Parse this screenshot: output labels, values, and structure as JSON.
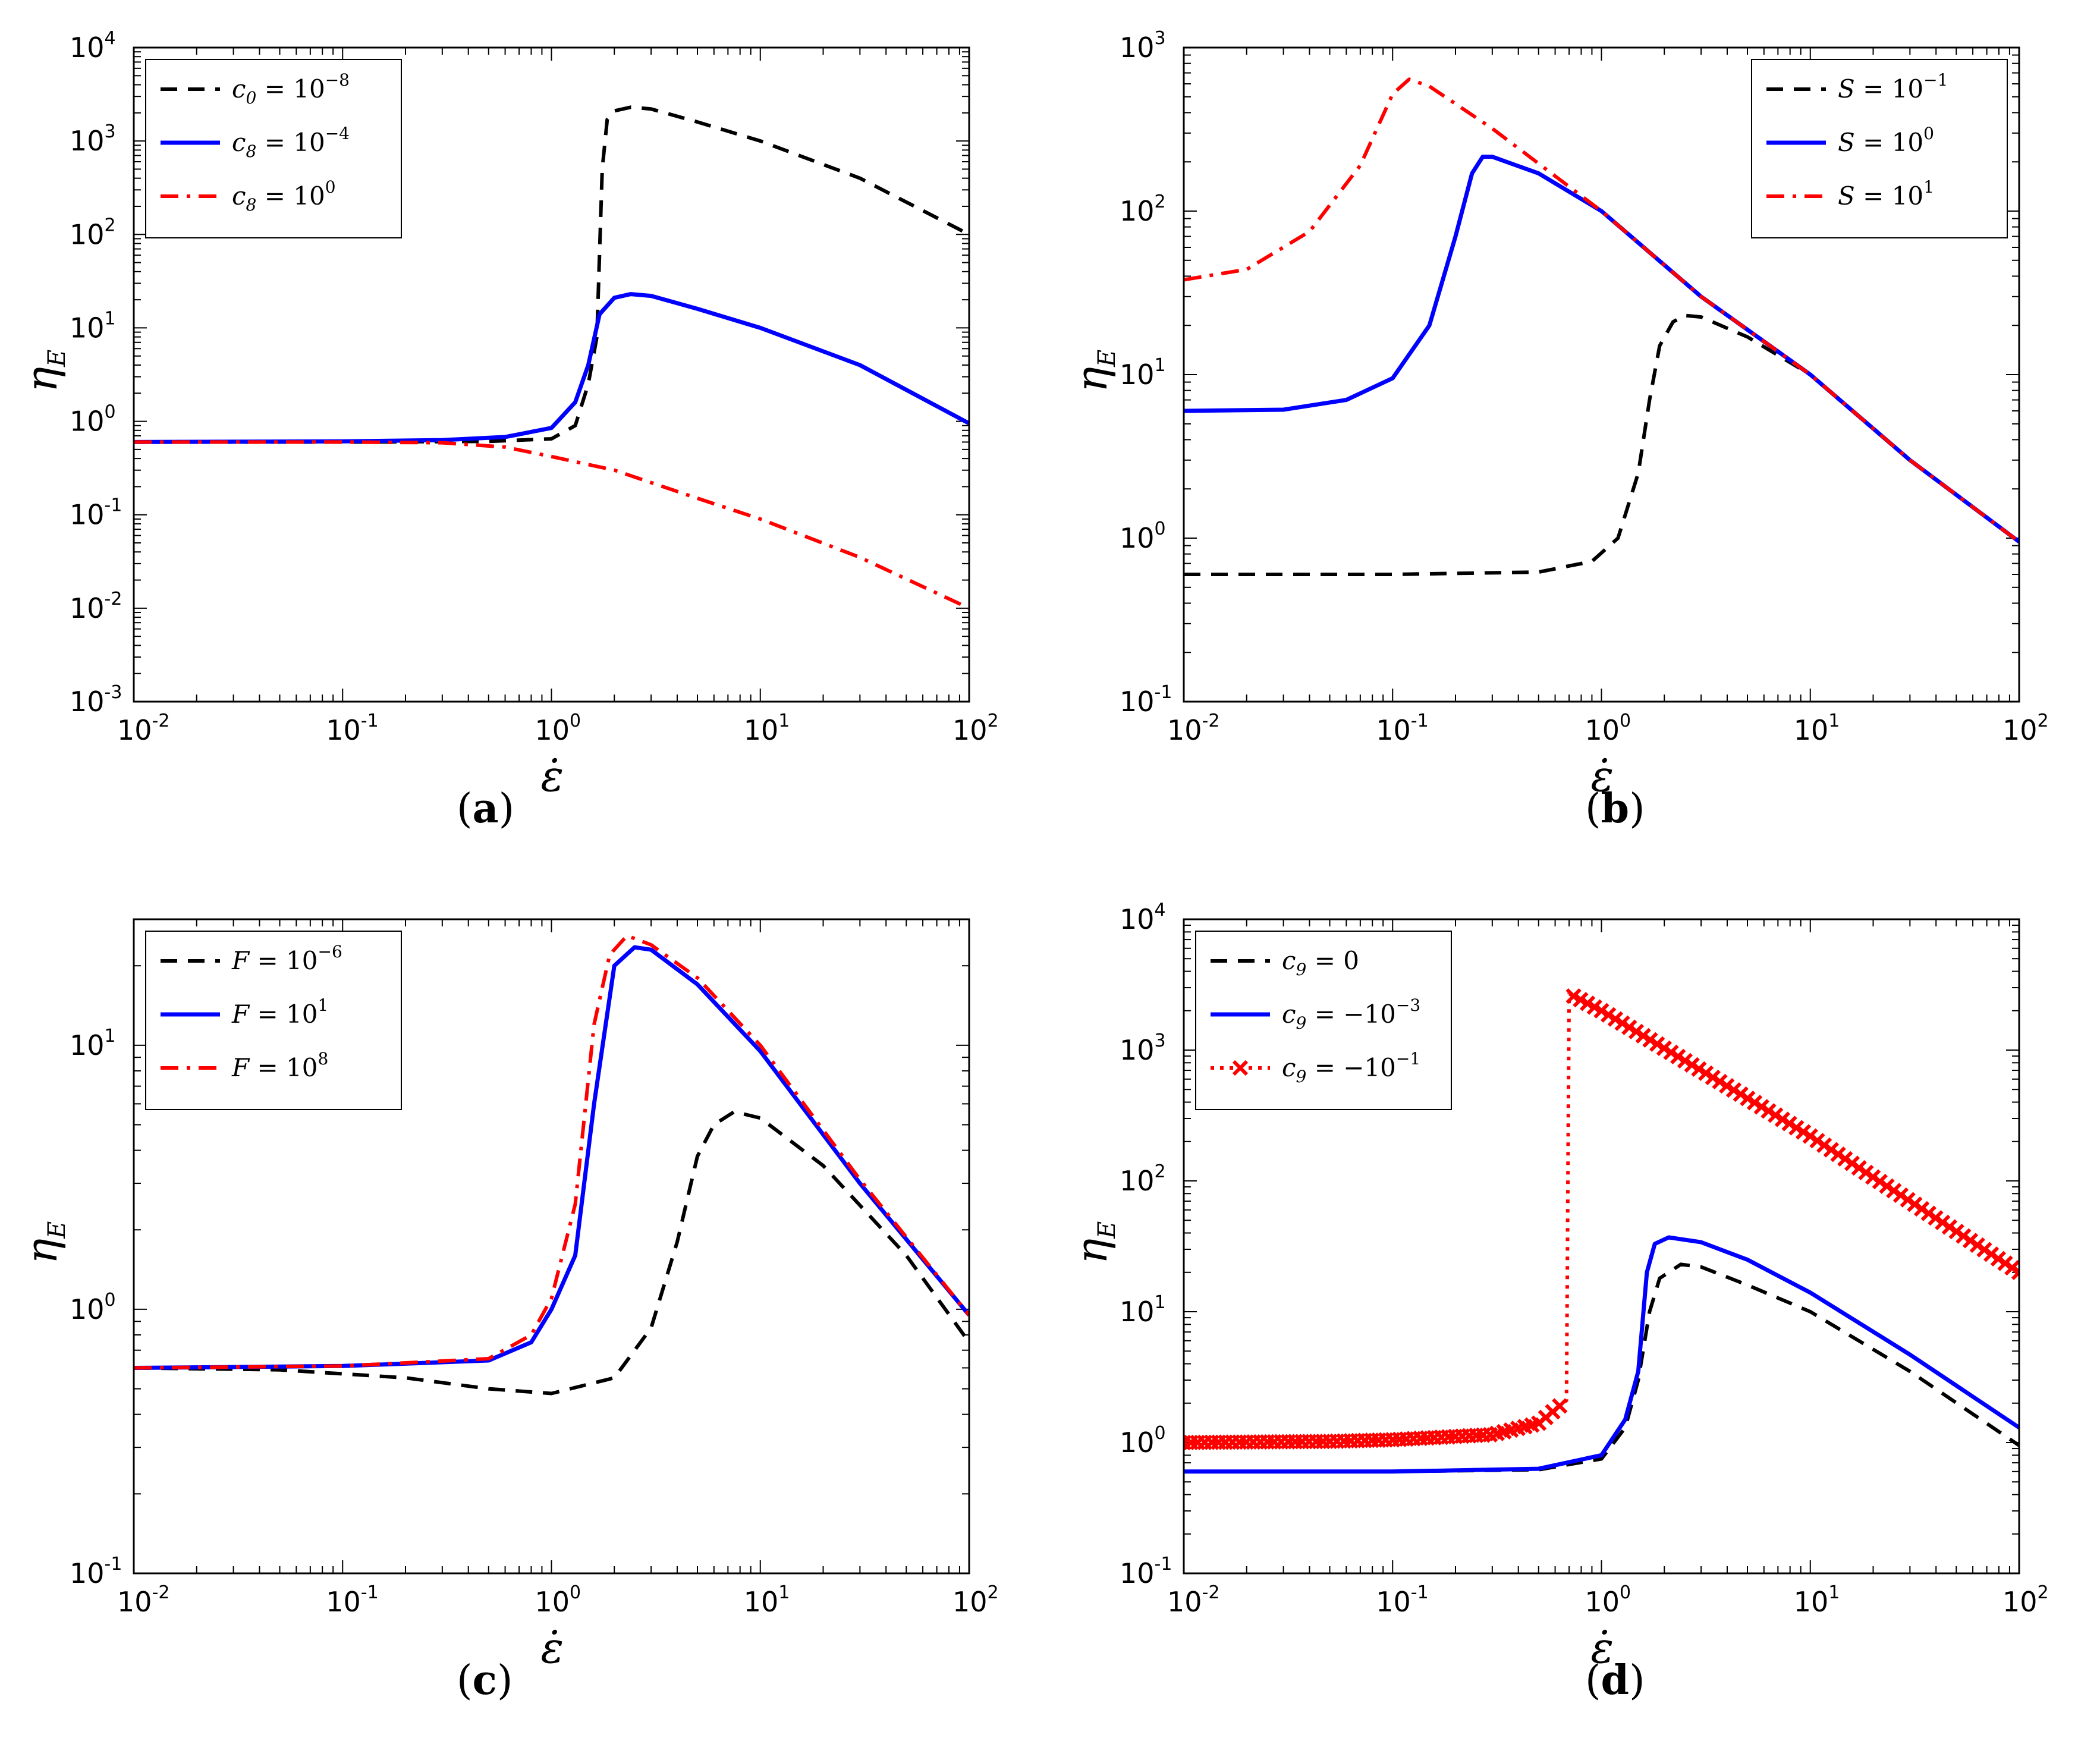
{
  "chart_data": [
    {
      "id": "a",
      "type": "line",
      "caption": "a",
      "xlabel": "ε̇",
      "ylabel": "η",
      "ylabel_sub": "E",
      "xscale": "log",
      "yscale": "log",
      "xlim": [
        0.01,
        100
      ],
      "ylim": [
        0.001,
        10000
      ],
      "xticks": [
        {
          "base": "10",
          "exp": "-2"
        },
        {
          "base": "10",
          "exp": "-1"
        },
        {
          "base": "10",
          "exp": "0"
        },
        {
          "base": "10",
          "exp": "1"
        },
        {
          "base": "10",
          "exp": "2"
        }
      ],
      "yticks": [
        {
          "base": "10",
          "exp": "-3"
        },
        {
          "base": "10",
          "exp": "-2"
        },
        {
          "base": "10",
          "exp": "-1"
        },
        {
          "base": "10",
          "exp": "0"
        },
        {
          "base": "10",
          "exp": "1"
        },
        {
          "base": "10",
          "exp": "2"
        },
        {
          "base": "10",
          "exp": "3"
        },
        {
          "base": "10",
          "exp": "4"
        }
      ],
      "legend_position": "top-left",
      "series": [
        {
          "name": "c",
          "name_sub": "0",
          "rel": " = 10",
          "name_sup": "−8",
          "color": "#000000",
          "dash": "dashed",
          "points": [
            [
              0.01,
              0.6
            ],
            [
              0.1,
              0.6
            ],
            [
              0.5,
              0.61
            ],
            [
              1.0,
              0.65
            ],
            [
              1.3,
              0.9
            ],
            [
              1.5,
              2.5
            ],
            [
              1.65,
              8
            ],
            [
              1.75,
              500
            ],
            [
              1.85,
              1700
            ],
            [
              2.0,
              2100
            ],
            [
              2.4,
              2300
            ],
            [
              3,
              2200
            ],
            [
              5,
              1600
            ],
            [
              10,
              1000
            ],
            [
              30,
              400
            ],
            [
              100,
              100
            ]
          ]
        },
        {
          "name": "c",
          "name_sub": "8",
          "rel": " = 10",
          "name_sup": "−4",
          "color": "#0000ff",
          "dash": "solid",
          "points": [
            [
              0.01,
              0.6
            ],
            [
              0.1,
              0.61
            ],
            [
              0.3,
              0.63
            ],
            [
              0.6,
              0.68
            ],
            [
              1.0,
              0.85
            ],
            [
              1.3,
              1.6
            ],
            [
              1.5,
              4
            ],
            [
              1.7,
              14
            ],
            [
              2.0,
              21
            ],
            [
              2.4,
              23
            ],
            [
              3,
              22
            ],
            [
              5,
              16
            ],
            [
              10,
              10
            ],
            [
              30,
              4
            ],
            [
              100,
              0.95
            ]
          ]
        },
        {
          "name": "c",
          "name_sub": "8",
          "rel": " = 10",
          "name_sup": "0",
          "color": "#ff0000",
          "dash": "dashdot",
          "points": [
            [
              0.01,
              0.6
            ],
            [
              0.1,
              0.6
            ],
            [
              0.3,
              0.59
            ],
            [
              0.6,
              0.53
            ],
            [
              1,
              0.42
            ],
            [
              2,
              0.3
            ],
            [
              5,
              0.15
            ],
            [
              10,
              0.09
            ],
            [
              30,
              0.035
            ],
            [
              100,
              0.01
            ]
          ]
        }
      ]
    },
    {
      "id": "b",
      "type": "line",
      "caption": "b",
      "xlabel": "ε̇",
      "ylabel": "η",
      "ylabel_sub": "E",
      "xscale": "log",
      "yscale": "log",
      "xlim": [
        0.01,
        100
      ],
      "ylim": [
        0.1,
        1000
      ],
      "xticks": [
        {
          "base": "10",
          "exp": "-2"
        },
        {
          "base": "10",
          "exp": "-1"
        },
        {
          "base": "10",
          "exp": "0"
        },
        {
          "base": "10",
          "exp": "1"
        },
        {
          "base": "10",
          "exp": "2"
        }
      ],
      "yticks": [
        {
          "base": "10",
          "exp": "-1"
        },
        {
          "base": "10",
          "exp": "0"
        },
        {
          "base": "10",
          "exp": "1"
        },
        {
          "base": "10",
          "exp": "2"
        },
        {
          "base": "10",
          "exp": "3"
        }
      ],
      "legend_position": "top-right",
      "series": [
        {
          "name": "S",
          "name_sub": "",
          "rel": " = 10",
          "name_sup": "−1",
          "color": "#000000",
          "dash": "dashed",
          "points": [
            [
              0.01,
              0.6
            ],
            [
              0.1,
              0.6
            ],
            [
              0.5,
              0.62
            ],
            [
              0.9,
              0.72
            ],
            [
              1.2,
              1.0
            ],
            [
              1.5,
              2.5
            ],
            [
              1.7,
              7
            ],
            [
              1.9,
              15
            ],
            [
              2.2,
              21
            ],
            [
              2.5,
              23
            ],
            [
              3,
              22.5
            ],
            [
              5,
              17
            ],
            [
              10,
              10
            ],
            [
              30,
              3
            ],
            [
              100,
              0.95
            ]
          ]
        },
        {
          "name": "S",
          "name_sub": "",
          "rel": " = 10",
          "name_sup": "0",
          "color": "#0000ff",
          "dash": "solid",
          "points": [
            [
              0.01,
              6
            ],
            [
              0.03,
              6.1
            ],
            [
              0.06,
              7
            ],
            [
              0.1,
              9.5
            ],
            [
              0.15,
              20
            ],
            [
              0.2,
              70
            ],
            [
              0.24,
              170
            ],
            [
              0.27,
              215
            ],
            [
              0.3,
              215
            ],
            [
              0.5,
              170
            ],
            [
              1,
              100
            ],
            [
              3,
              30
            ],
            [
              10,
              10
            ],
            [
              30,
              3
            ],
            [
              100,
              0.95
            ]
          ]
        },
        {
          "name": "S",
          "name_sub": "",
          "rel": " = 10",
          "name_sup": "1",
          "color": "#ff0000",
          "dash": "dashdot",
          "points": [
            [
              0.01,
              38
            ],
            [
              0.02,
              44
            ],
            [
              0.04,
              75
            ],
            [
              0.07,
              190
            ],
            [
              0.1,
              520
            ],
            [
              0.12,
              640
            ],
            [
              0.15,
              580
            ],
            [
              0.3,
              320
            ],
            [
              1,
              100
            ],
            [
              3,
              30
            ],
            [
              10,
              10
            ],
            [
              30,
              3
            ],
            [
              100,
              0.95
            ]
          ]
        }
      ]
    },
    {
      "id": "c",
      "type": "line",
      "caption": "c",
      "xlabel": "ε̇",
      "ylabel": "η",
      "ylabel_sub": "E",
      "xscale": "log",
      "yscale": "log",
      "xlim": [
        0.01,
        100
      ],
      "ylim": [
        0.1,
        30
      ],
      "xticks": [
        {
          "base": "10",
          "exp": "-2"
        },
        {
          "base": "10",
          "exp": "-1"
        },
        {
          "base": "10",
          "exp": "0"
        },
        {
          "base": "10",
          "exp": "1"
        },
        {
          "base": "10",
          "exp": "2"
        }
      ],
      "yticks": [
        {
          "base": "10",
          "exp": "-1"
        },
        {
          "base": "10",
          "exp": "0"
        },
        {
          "base": "10",
          "exp": "1"
        }
      ],
      "legend_position": "top-left",
      "series": [
        {
          "name": "F",
          "name_sub": "",
          "rel": " = 10",
          "name_sup": "−6",
          "color": "#000000",
          "dash": "dashed",
          "points": [
            [
              0.01,
              0.6
            ],
            [
              0.05,
              0.59
            ],
            [
              0.2,
              0.55
            ],
            [
              0.5,
              0.5
            ],
            [
              1.0,
              0.48
            ],
            [
              2,
              0.55
            ],
            [
              3,
              0.85
            ],
            [
              4,
              1.8
            ],
            [
              5,
              3.8
            ],
            [
              6,
              5
            ],
            [
              7.5,
              5.6
            ],
            [
              10,
              5.3
            ],
            [
              20,
              3.5
            ],
            [
              50,
              1.6
            ],
            [
              100,
              0.75
            ]
          ]
        },
        {
          "name": "F",
          "name_sub": "",
          "rel": " = 10",
          "name_sup": "1",
          "color": "#0000ff",
          "dash": "solid",
          "points": [
            [
              0.01,
              0.6
            ],
            [
              0.1,
              0.61
            ],
            [
              0.5,
              0.64
            ],
            [
              0.8,
              0.75
            ],
            [
              1.0,
              1.0
            ],
            [
              1.3,
              1.6
            ],
            [
              1.6,
              6
            ],
            [
              2.0,
              20
            ],
            [
              2.5,
              23.5
            ],
            [
              3,
              23
            ],
            [
              5,
              17
            ],
            [
              10,
              9.5
            ],
            [
              30,
              3
            ],
            [
              100,
              0.95
            ]
          ]
        },
        {
          "name": "F",
          "name_sub": "",
          "rel": " = 10",
          "name_sup": "8",
          "color": "#ff0000",
          "dash": "dashdot",
          "points": [
            [
              0.01,
              0.6
            ],
            [
              0.1,
              0.61
            ],
            [
              0.5,
              0.65
            ],
            [
              0.8,
              0.8
            ],
            [
              1.0,
              1.1
            ],
            [
              1.3,
              2.5
            ],
            [
              1.6,
              12
            ],
            [
              1.9,
              22
            ],
            [
              2.3,
              26
            ],
            [
              3,
              24
            ],
            [
              5,
              18
            ],
            [
              10,
              10
            ],
            [
              30,
              3.1
            ],
            [
              100,
              0.95
            ]
          ]
        }
      ]
    },
    {
      "id": "d",
      "type": "line",
      "caption": "d",
      "xlabel": "ε̇",
      "ylabel": "η",
      "ylabel_sub": "E",
      "xscale": "log",
      "yscale": "log",
      "xlim": [
        0.01,
        100
      ],
      "ylim": [
        0.1,
        10000
      ],
      "xticks": [
        {
          "base": "10",
          "exp": "-2"
        },
        {
          "base": "10",
          "exp": "-1"
        },
        {
          "base": "10",
          "exp": "0"
        },
        {
          "base": "10",
          "exp": "1"
        },
        {
          "base": "10",
          "exp": "2"
        }
      ],
      "yticks": [
        {
          "base": "10",
          "exp": "-1"
        },
        {
          "base": "10",
          "exp": "0"
        },
        {
          "base": "10",
          "exp": "1"
        },
        {
          "base": "10",
          "exp": "2"
        },
        {
          "base": "10",
          "exp": "3"
        },
        {
          "base": "10",
          "exp": "4"
        }
      ],
      "legend_position": "top-left",
      "series": [
        {
          "name": "c",
          "name_sub": "9",
          "rel": " = 0",
          "name_sup": "",
          "color": "#000000",
          "dash": "dashed",
          "points": [
            [
              0.01,
              0.6
            ],
            [
              0.1,
              0.6
            ],
            [
              0.5,
              0.62
            ],
            [
              1.0,
              0.75
            ],
            [
              1.3,
              1.3
            ],
            [
              1.5,
              3
            ],
            [
              1.7,
              10
            ],
            [
              1.9,
              18
            ],
            [
              2.4,
              23
            ],
            [
              3,
              22
            ],
            [
              5,
              16
            ],
            [
              10,
              10
            ],
            [
              30,
              3.5
            ],
            [
              100,
              0.95
            ]
          ]
        },
        {
          "name": "c",
          "name_sub": "9",
          "rel": " = −10",
          "name_sup": "−3",
          "color": "#0000ff",
          "dash": "solid",
          "points": [
            [
              0.01,
              0.6
            ],
            [
              0.1,
              0.6
            ],
            [
              0.5,
              0.63
            ],
            [
              1.0,
              0.8
            ],
            [
              1.3,
              1.5
            ],
            [
              1.5,
              3.5
            ],
            [
              1.65,
              20
            ],
            [
              1.8,
              33
            ],
            [
              2.1,
              37
            ],
            [
              3,
              34
            ],
            [
              5,
              25
            ],
            [
              10,
              14
            ],
            [
              30,
              4.7
            ],
            [
              100,
              1.3
            ]
          ]
        },
        {
          "name": "c",
          "name_sub": "9",
          "rel": " = −10",
          "name_sup": "−1",
          "color": "#ff0000",
          "dash": "dotted",
          "marker": "x",
          "points": [
            [
              0.01,
              1.0
            ],
            [
              0.05,
              1.02
            ],
            [
              0.1,
              1.05
            ],
            [
              0.3,
              1.15
            ],
            [
              0.5,
              1.4
            ],
            [
              0.68,
              2.1
            ],
            [
              0.7,
              2700
            ],
            [
              1,
              2000
            ],
            [
              3,
              700
            ],
            [
              10,
              220
            ],
            [
              30,
              70
            ],
            [
              100,
              20
            ]
          ]
        }
      ]
    }
  ]
}
